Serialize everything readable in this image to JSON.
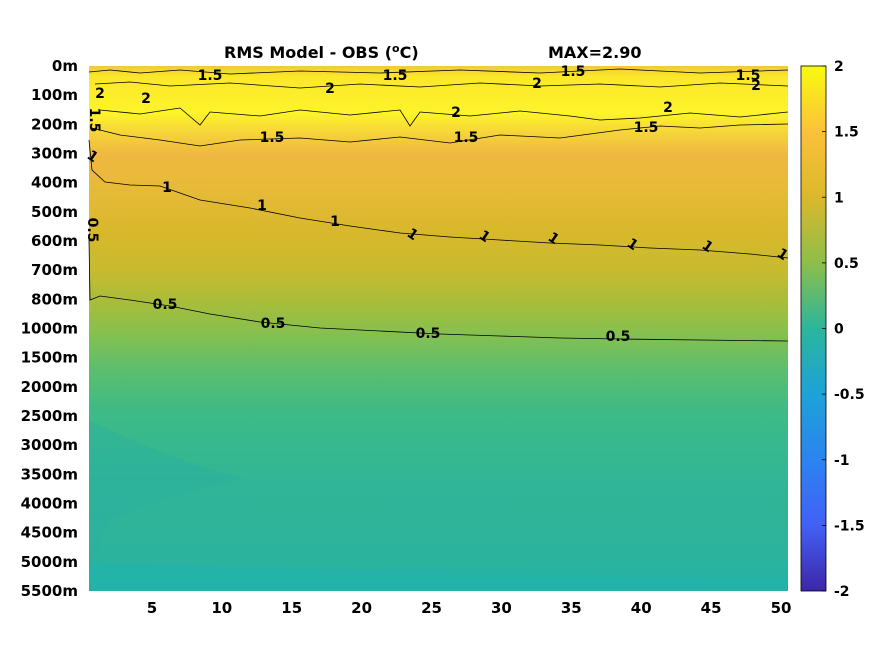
{
  "chart_data": {
    "type": "heatmap",
    "title": "RMS Model - OBS (",
    "title_sup": "o",
    "title_unit": "C)",
    "max_label": "MAX=2.90",
    "xlabel": "",
    "ylabel": "",
    "x_ticks": [
      5,
      10,
      15,
      20,
      25,
      30,
      35,
      40,
      45,
      50
    ],
    "x_range": [
      0.5,
      50.5
    ],
    "y_tick_labels": [
      "0m",
      "100m",
      "200m",
      "300m",
      "400m",
      "500m",
      "600m",
      "700m",
      "800m",
      "1000m",
      "1500m",
      "2000m",
      "2500m",
      "3000m",
      "3500m",
      "4000m",
      "4500m",
      "5000m",
      "5500m"
    ],
    "colorbar": {
      "ticks": [
        "2",
        "1.5",
        "1",
        "0.5",
        "0",
        "-0.5",
        "-1",
        "-1.5",
        "-2"
      ],
      "range": [
        -2,
        2
      ]
    },
    "contours": [
      {
        "level": 2,
        "labels": [
          "2",
          "2",
          "2",
          "2",
          "2",
          "2",
          "2"
        ]
      },
      {
        "level": 1.5,
        "labels": [
          "1.5",
          "1.5",
          "1.5",
          "1.5",
          "1.5",
          "1.5",
          "1.5",
          "1.5"
        ]
      },
      {
        "level": 1,
        "labels": [
          "1",
          "1",
          "1",
          "1",
          "1",
          "1",
          "1",
          "1",
          "1",
          "1"
        ]
      },
      {
        "level": 0.5,
        "labels": [
          "0.5",
          "0.5",
          "0.5",
          "0.5",
          "0.5"
        ]
      }
    ],
    "depth_profile": [
      {
        "depth": "0m",
        "value": 1.6
      },
      {
        "depth": "100m",
        "value": 1.9
      },
      {
        "depth": "200m",
        "value": 1.6
      },
      {
        "depth": "300m",
        "value": 1.25
      },
      {
        "depth": "400m",
        "value": 1.2
      },
      {
        "depth": "500m",
        "value": 1.1
      },
      {
        "depth": "600m",
        "value": 1.0
      },
      {
        "depth": "700m",
        "value": 0.85
      },
      {
        "depth": "800m",
        "value": 0.65
      },
      {
        "depth": "1000m",
        "value": 0.5
      },
      {
        "depth": "1500m",
        "value": 0.38
      },
      {
        "depth": "2000m",
        "value": 0.32
      },
      {
        "depth": "3000m",
        "value": 0.28
      },
      {
        "depth": "5500m",
        "value": 0.15
      }
    ]
  }
}
